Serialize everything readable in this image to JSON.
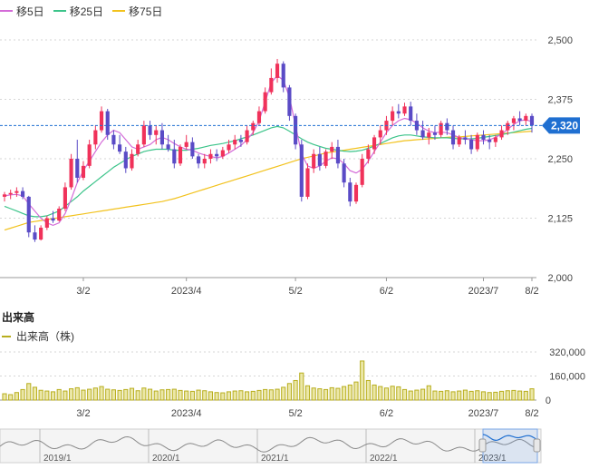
{
  "legend": {
    "ma5": {
      "label": "移5日",
      "color": "#d46bd8"
    },
    "ma25": {
      "label": "移25日",
      "color": "#3cc48a"
    },
    "ma75": {
      "label": "移75日",
      "color": "#f2c21d"
    }
  },
  "price_axis": {
    "ticks": [
      "2,500",
      "2,375",
      "2,250",
      "2,125",
      "2,000"
    ]
  },
  "current_price": {
    "label": "2,320",
    "value": 2320
  },
  "volume_section": {
    "title": "出来高",
    "legend_label": "出来高（株)"
  },
  "volume_axis": {
    "ticks": [
      "320,000",
      "160,000",
      "0"
    ]
  },
  "x_axis": {
    "ticks": [
      "3/2",
      "2023/4",
      "5/2",
      "6/2",
      "2023/7",
      "8/2"
    ]
  },
  "navigator": {
    "ticks": [
      "2019/1",
      "2020/1",
      "2021/1",
      "2022/1",
      "2023/1"
    ]
  },
  "colors": {
    "up": "#f0325a",
    "down": "#5a4bc6",
    "volume": "#b8ae1e",
    "price_line": "#1f6fd1"
  },
  "chart_data": {
    "type": "candlestick",
    "price_ylim": [
      2000,
      2500
    ],
    "volume_ylim": [
      0,
      320000
    ],
    "ma_series_names": [
      "移5日",
      "移25日",
      "移75日"
    ],
    "candles": [
      [
        2170,
        2180,
        2160,
        2175
      ],
      [
        2175,
        2185,
        2165,
        2178
      ],
      [
        2178,
        2190,
        2170,
        2182
      ],
      [
        2182,
        2190,
        2165,
        2170
      ],
      [
        2170,
        2172,
        2085,
        2095
      ],
      [
        2095,
        2110,
        2075,
        2080
      ],
      [
        2080,
        2110,
        2078,
        2105
      ],
      [
        2105,
        2130,
        2100,
        2125
      ],
      [
        2125,
        2140,
        2115,
        2120
      ],
      [
        2120,
        2150,
        2118,
        2145
      ],
      [
        2145,
        2200,
        2140,
        2190
      ],
      [
        2190,
        2260,
        2185,
        2250
      ],
      [
        2250,
        2290,
        2200,
        2210
      ],
      [
        2210,
        2245,
        2205,
        2235
      ],
      [
        2235,
        2290,
        2230,
        2280
      ],
      [
        2280,
        2320,
        2270,
        2310
      ],
      [
        2310,
        2360,
        2305,
        2350
      ],
      [
        2350,
        2355,
        2290,
        2300
      ],
      [
        2300,
        2310,
        2270,
        2280
      ],
      [
        2280,
        2300,
        2260,
        2265
      ],
      [
        2265,
        2275,
        2220,
        2230
      ],
      [
        2230,
        2270,
        2225,
        2260
      ],
      [
        2260,
        2290,
        2255,
        2280
      ],
      [
        2280,
        2330,
        2275,
        2320
      ],
      [
        2320,
        2330,
        2290,
        2300
      ],
      [
        2300,
        2320,
        2280,
        2310
      ],
      [
        2310,
        2325,
        2270,
        2280
      ],
      [
        2280,
        2300,
        2265,
        2270
      ],
      [
        2270,
        2290,
        2230,
        2240
      ],
      [
        2240,
        2280,
        2235,
        2275
      ],
      [
        2275,
        2300,
        2270,
        2285
      ],
      [
        2285,
        2295,
        2250,
        2255
      ],
      [
        2255,
        2260,
        2230,
        2240
      ],
      [
        2240,
        2260,
        2230,
        2250
      ],
      [
        2250,
        2270,
        2240,
        2260
      ],
      [
        2260,
        2270,
        2245,
        2255
      ],
      [
        2255,
        2275,
        2250,
        2268
      ],
      [
        2268,
        2290,
        2262,
        2280
      ],
      [
        2280,
        2300,
        2270,
        2290
      ],
      [
        2290,
        2300,
        2275,
        2285
      ],
      [
        2285,
        2320,
        2280,
        2310
      ],
      [
        2310,
        2330,
        2300,
        2325
      ],
      [
        2325,
        2360,
        2320,
        2350
      ],
      [
        2350,
        2400,
        2345,
        2390
      ],
      [
        2390,
        2440,
        2385,
        2420
      ],
      [
        2420,
        2460,
        2410,
        2450
      ],
      [
        2450,
        2455,
        2390,
        2400
      ],
      [
        2400,
        2405,
        2330,
        2340
      ],
      [
        2340,
        2345,
        2270,
        2280
      ],
      [
        2280,
        2290,
        2160,
        2170
      ],
      [
        2170,
        2240,
        2165,
        2230
      ],
      [
        2230,
        2270,
        2220,
        2260
      ],
      [
        2260,
        2275,
        2225,
        2235
      ],
      [
        2235,
        2270,
        2230,
        2265
      ],
      [
        2265,
        2285,
        2250,
        2275
      ],
      [
        2275,
        2290,
        2230,
        2240
      ],
      [
        2240,
        2250,
        2190,
        2200
      ],
      [
        2200,
        2210,
        2150,
        2160
      ],
      [
        2160,
        2200,
        2155,
        2195
      ],
      [
        2195,
        2260,
        2190,
        2250
      ],
      [
        2250,
        2280,
        2240,
        2270
      ],
      [
        2270,
        2300,
        2260,
        2295
      ],
      [
        2295,
        2320,
        2280,
        2310
      ],
      [
        2310,
        2340,
        2300,
        2330
      ],
      [
        2330,
        2360,
        2320,
        2350
      ],
      [
        2350,
        2365,
        2335,
        2345
      ],
      [
        2345,
        2368,
        2340,
        2360
      ],
      [
        2360,
        2370,
        2320,
        2330
      ],
      [
        2330,
        2345,
        2300,
        2310
      ],
      [
        2310,
        2330,
        2290,
        2295
      ],
      [
        2295,
        2315,
        2280,
        2305
      ],
      [
        2305,
        2320,
        2290,
        2300
      ],
      [
        2300,
        2330,
        2295,
        2325
      ],
      [
        2325,
        2335,
        2300,
        2310
      ],
      [
        2310,
        2320,
        2270,
        2280
      ],
      [
        2280,
        2300,
        2275,
        2295
      ],
      [
        2295,
        2310,
        2280,
        2290
      ],
      [
        2290,
        2300,
        2260,
        2270
      ],
      [
        2270,
        2305,
        2265,
        2300
      ],
      [
        2300,
        2310,
        2280,
        2290
      ],
      [
        2290,
        2300,
        2270,
        2285
      ],
      [
        2285,
        2300,
        2275,
        2295
      ],
      [
        2295,
        2320,
        2290,
        2310
      ],
      [
        2310,
        2330,
        2300,
        2325
      ],
      [
        2325,
        2340,
        2310,
        2335
      ],
      [
        2335,
        2350,
        2320,
        2330
      ],
      [
        2330,
        2345,
        2320,
        2340
      ],
      [
        2340,
        2345,
        2305,
        2320
      ]
    ],
    "ma5": [
      2172,
      2174,
      2175,
      2172,
      2155,
      2140,
      2125,
      2115,
      2110,
      2115,
      2135,
      2165,
      2200,
      2225,
      2245,
      2265,
      2285,
      2300,
      2310,
      2305,
      2290,
      2275,
      2270,
      2275,
      2280,
      2290,
      2295,
      2290,
      2282,
      2275,
      2270,
      2268,
      2262,
      2258,
      2255,
      2252,
      2255,
      2262,
      2270,
      2278,
      2290,
      2305,
      2330,
      2370,
      2410,
      2425,
      2415,
      2380,
      2320,
      2260,
      2235,
      2230,
      2235,
      2245,
      2252,
      2250,
      2240,
      2225,
      2220,
      2228,
      2245,
      2265,
      2285,
      2305,
      2320,
      2330,
      2335,
      2332,
      2325,
      2315,
      2308,
      2305,
      2306,
      2305,
      2300,
      2295,
      2292,
      2290,
      2288,
      2288,
      2290,
      2295,
      2302,
      2312,
      2322,
      2330,
      2332,
      2328
    ],
    "ma25": [
      2150,
      2145,
      2140,
      2135,
      2130,
      2128,
      2128,
      2130,
      2135,
      2140,
      2150,
      2160,
      2170,
      2182,
      2192,
      2202,
      2212,
      2222,
      2232,
      2240,
      2248,
      2255,
      2260,
      2265,
      2268,
      2270,
      2270,
      2270,
      2268,
      2268,
      2268,
      2270,
      2272,
      2275,
      2278,
      2280,
      2282,
      2285,
      2288,
      2292,
      2296,
      2300,
      2305,
      2310,
      2315,
      2318,
      2315,
      2308,
      2300,
      2292,
      2285,
      2280,
      2276,
      2272,
      2270,
      2268,
      2266,
      2265,
      2266,
      2268,
      2272,
      2277,
      2282,
      2288,
      2294,
      2298,
      2300,
      2300,
      2298,
      2296,
      2295,
      2294,
      2294,
      2294,
      2293,
      2292,
      2292,
      2292,
      2293,
      2295,
      2297,
      2299,
      2301,
      2303,
      2306,
      2309,
      2312,
      2314
    ],
    "ma75": [
      2100,
      2104,
      2108,
      2112,
      2116,
      2118,
      2120,
      2122,
      2124,
      2126,
      2128,
      2130,
      2132,
      2134,
      2136,
      2138,
      2140,
      2142,
      2144,
      2146,
      2148,
      2150,
      2152,
      2154,
      2156,
      2158,
      2160,
      2163,
      2166,
      2170,
      2174,
      2178,
      2182,
      2186,
      2190,
      2194,
      2198,
      2202,
      2206,
      2210,
      2214,
      2218,
      2222,
      2226,
      2230,
      2234,
      2238,
      2242,
      2246,
      2250,
      2253,
      2256,
      2259,
      2262,
      2264,
      2266,
      2268,
      2270,
      2272,
      2274,
      2276,
      2278,
      2280,
      2282,
      2284,
      2286,
      2288,
      2289,
      2290,
      2291,
      2292,
      2293,
      2294,
      2295,
      2296,
      2296,
      2297,
      2298,
      2299,
      2300,
      2301,
      2302,
      2303,
      2304,
      2305,
      2306,
      2307,
      2308
    ],
    "volume": [
      42000,
      36000,
      50000,
      70000,
      110000,
      85000,
      65000,
      60000,
      55000,
      70000,
      60000,
      75000,
      82000,
      66000,
      72000,
      80000,
      90000,
      72000,
      68000,
      64000,
      70000,
      78000,
      62000,
      80000,
      72000,
      60000,
      68000,
      70000,
      72000,
      64000,
      60000,
      58000,
      66000,
      62000,
      55000,
      50000,
      48000,
      55000,
      60000,
      62000,
      55000,
      58000,
      64000,
      70000,
      68000,
      72000,
      85000,
      110000,
      130000,
      180000,
      95000,
      80000,
      75000,
      70000,
      82000,
      78000,
      90000,
      100000,
      120000,
      260000,
      130000,
      100000,
      90000,
      80000,
      92000,
      88000,
      70000,
      60000,
      66000,
      72000,
      95000,
      60000,
      58000,
      62000,
      55000,
      60000,
      66000,
      58000,
      62000,
      55000,
      50000,
      52000,
      58000,
      62000,
      64000,
      60000,
      58000,
      75000
    ]
  }
}
